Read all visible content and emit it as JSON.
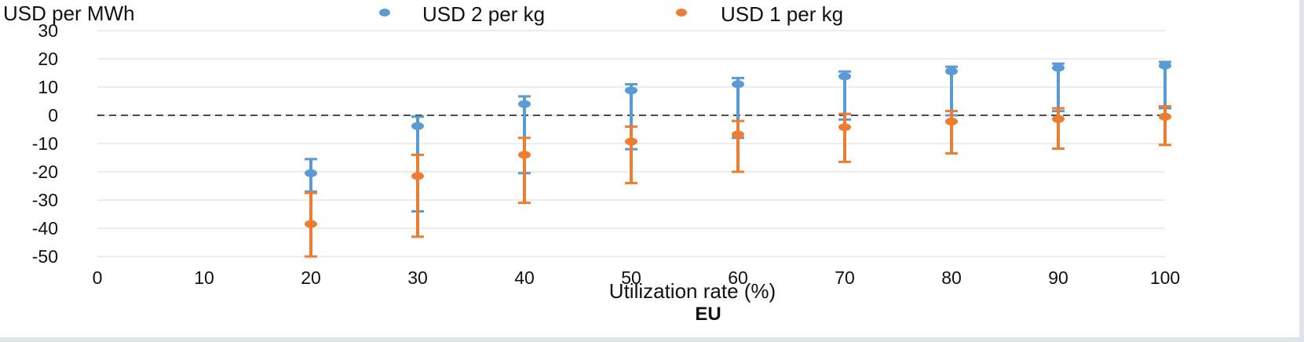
{
  "chart_data": {
    "type": "scatter",
    "title": "",
    "subtitle": "EU",
    "xlabel": "Utilization rate (%)",
    "ylabel": "USD per MWh",
    "xlim": [
      0,
      100
    ],
    "ylim": [
      -50,
      30
    ],
    "x_ticks": [
      "0",
      "10",
      "20",
      "30",
      "40",
      "50",
      "60",
      "70",
      "80",
      "90",
      "100"
    ],
    "y_ticks": [
      "30",
      "20",
      "10",
      "0",
      "-10",
      "-20",
      "-30",
      "-40",
      "-50"
    ],
    "grid": true,
    "reference_line": 0,
    "legend_position": "top",
    "x": [
      20,
      30,
      40,
      50,
      60,
      70,
      80,
      90,
      100
    ],
    "series": [
      {
        "name": "USD 2 per kg",
        "color": "#5b9bd5",
        "values": [
          -20.5,
          -3.8,
          4.0,
          8.8,
          11.0,
          13.8,
          15.6,
          16.8,
          17.6
        ],
        "error_low": [
          -15.5,
          -0.5,
          6.7,
          11.0,
          13.2,
          15.5,
          17.2,
          18.3,
          18.9
        ],
        "error_high": [
          -27.0,
          -34.0,
          -20.5,
          -12.0,
          -8.0,
          -1.5,
          0.0,
          1.5,
          2.5
        ]
      },
      {
        "name": "USD 1 per kg",
        "color": "#ed7d31",
        "values": [
          -38.5,
          -21.5,
          -14.0,
          -9.3,
          -6.8,
          -4.2,
          -2.2,
          -1.3,
          -0.5
        ],
        "error_low": [
          -27.5,
          -14.0,
          -8.0,
          -4.0,
          -2.0,
          0.5,
          1.5,
          2.5,
          3.2
        ],
        "error_high": [
          -50.0,
          -43.0,
          -31.0,
          -24.0,
          -20.0,
          -16.5,
          -13.5,
          -11.8,
          -10.5
        ]
      }
    ]
  }
}
